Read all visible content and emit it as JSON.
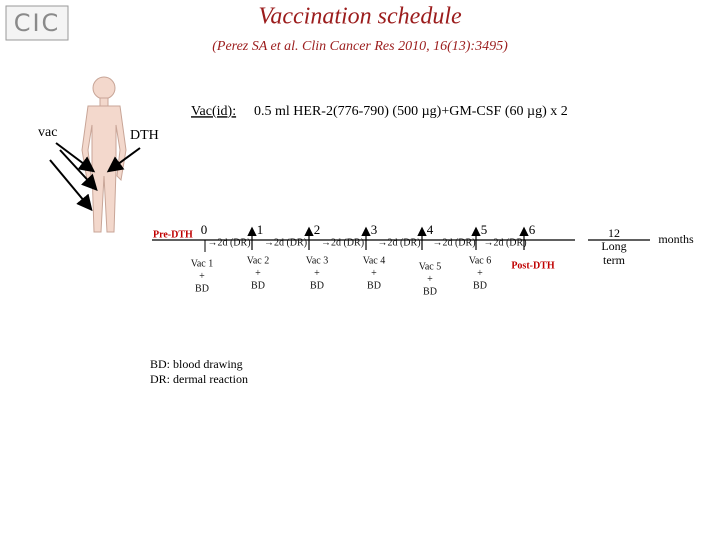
{
  "header": {
    "logo": "CIC",
    "title": "Vaccination schedule",
    "subtitle": "(Perez SA et al. Clin Cancer Res 2010, 16(13):3495)"
  },
  "regimen": {
    "label": "Vac(id):",
    "text": "0.5 ml HER-2(776-790) (500 µg)+GM-CSF (60 µg) x 2"
  },
  "body_labels": {
    "vac": "vac",
    "dth": "DTH"
  },
  "timeline": {
    "start_label": "Pre-DTH",
    "months": [
      "0",
      "1",
      "2",
      "3",
      "4",
      "5",
      "6"
    ],
    "intervals": [
      "→2d (DR)",
      "→2d (DR)",
      "→2d (DR)",
      "→2d (DR)",
      "→2d (DR)",
      "→2d (DR)"
    ],
    "vaccinations": [
      [
        "Vac 1",
        "+",
        "BD"
      ],
      [
        "Vac 2",
        "+",
        "BD"
      ],
      [
        "Vac 3",
        "+",
        "BD"
      ],
      [
        "Vac 4",
        "+",
        "BD"
      ],
      [
        "Vac 5",
        "+",
        "BD"
      ],
      [
        "Vac 6",
        "+",
        "BD"
      ]
    ],
    "end_label": "Post-DTH",
    "long_term": [
      "12",
      "Long",
      "term"
    ],
    "unit": "months"
  },
  "legend": [
    "BD: blood drawing",
    "DR: dermal reaction"
  ]
}
